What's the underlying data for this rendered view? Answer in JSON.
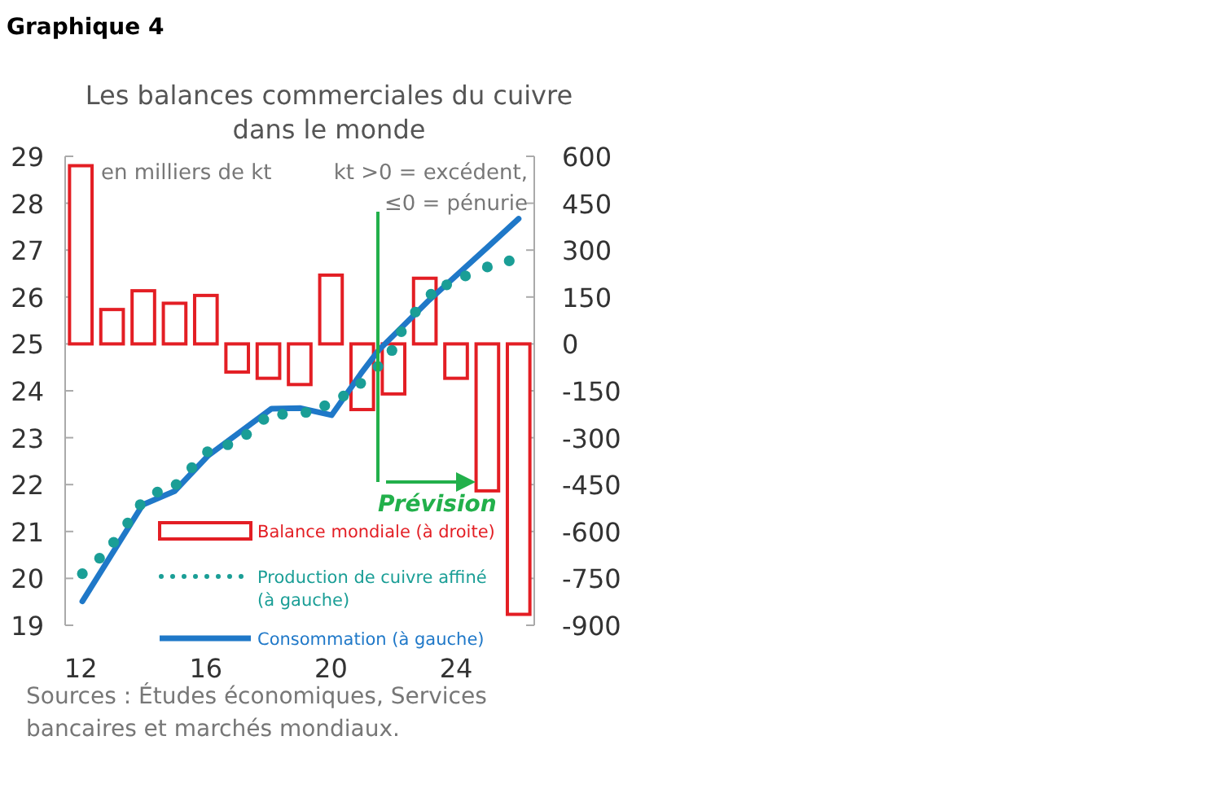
{
  "chart_data": {
    "type": "line",
    "title": "Les balances commerciales du cuivre dans le monde",
    "annotations": [
      "Graphique 4",
      "en milliers de kt",
      "kt >0 = excédent, ≤0 = pénurie",
      "Sources : Études économiques, Services bancaires et marchés mondiaux."
    ],
    "xlim": [
      2011.5,
      2026.5
    ],
    "xticks": [
      {
        "value": 2012,
        "label": "12"
      },
      {
        "value": 2016,
        "label": "16"
      },
      {
        "value": 2020,
        "label": "20"
      },
      {
        "value": 2024,
        "label": "24"
      }
    ],
    "ylim": [
      19,
      29
    ],
    "yticks": [
      19,
      20,
      21,
      22,
      23,
      24,
      25,
      26,
      27,
      28,
      29
    ],
    "y2lim": [
      -900,
      600
    ],
    "y2ticks": [
      -900,
      -750,
      -600,
      -450,
      -300,
      -150,
      0,
      150,
      300,
      450,
      600
    ],
    "grid": false,
    "legend": "bottom",
    "ref_lines": [
      {
        "axis": "x",
        "value": 2021.5,
        "label": "Prévision",
        "color": "#22b04b"
      }
    ],
    "series": [
      {
        "name": "Balance mondiale (à droite)",
        "type": "bar",
        "axis": "y2",
        "color": "#e31e24",
        "x": [
          2012,
          2013,
          2014,
          2015,
          2016,
          2017,
          2018,
          2019,
          2020,
          2021,
          2022,
          2023,
          2024,
          2025,
          2026
        ],
        "values": [
          570,
          110,
          170,
          130,
          155,
          -90,
          -110,
          -130,
          220,
          -210,
          -160,
          210,
          -110,
          -470,
          -865
        ]
      },
      {
        "name": "Production de cuivre affiné (à gauche)",
        "type": "scatter",
        "marker": "circle",
        "color": "#1a9e96",
        "x": [
          2012.05,
          2012.6,
          2013.05,
          2013.5,
          2013.9,
          2014.45,
          2015.05,
          2015.55,
          2016.05,
          2016.7,
          2017.3,
          2017.85,
          2018.45,
          2019.2,
          2019.8,
          2020.4,
          2020.95,
          2021.5,
          2021.95,
          2022.25,
          2022.7,
          2023.2,
          2023.7,
          2024.3,
          2025.0,
          2025.7
        ],
        "values": [
          20.1,
          20.43,
          20.77,
          21.18,
          21.57,
          21.84,
          22.0,
          22.36,
          22.7,
          22.85,
          23.07,
          23.39,
          23.5,
          23.54,
          23.68,
          23.89,
          24.16,
          24.52,
          24.86,
          25.26,
          25.68,
          26.06,
          26.26,
          26.45,
          26.64,
          26.77
        ]
      },
      {
        "name": "Consommation (à gauche)",
        "type": "line",
        "line_style": "solid",
        "color": "#1f78c8",
        "x": [
          2012.05,
          2013.98,
          2015.0,
          2016.06,
          2018.1,
          2019.03,
          2020.02,
          2020.96,
          2021.53,
          2023.1,
          2025.02,
          2026.0
        ],
        "values": [
          19.51,
          21.57,
          21.86,
          22.61,
          23.62,
          23.63,
          23.48,
          24.37,
          24.87,
          25.91,
          27.07,
          27.67
        ]
      }
    ]
  }
}
